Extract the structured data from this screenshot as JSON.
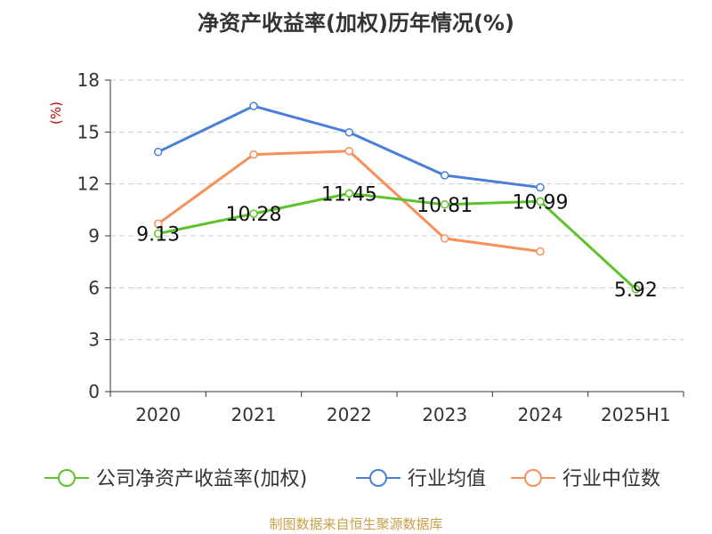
{
  "chart_data": {
    "type": "line",
    "title": "净资产收益率(加权)历年情况(%)",
    "ylabel": "(%)",
    "categories": [
      "2020",
      "2021",
      "2022",
      "2023",
      "2024",
      "2025H1"
    ],
    "yticks": [
      0,
      3,
      6,
      9,
      12,
      15,
      18
    ],
    "ylim": [
      0,
      18
    ],
    "grid": true,
    "legend_position": "bottom",
    "series": [
      {
        "name": "公司净资产收益率(加权)",
        "color": "#5cc32b",
        "values": [
          9.13,
          10.28,
          11.45,
          10.81,
          10.99,
          5.92
        ],
        "labels": [
          "9.13",
          "10.28",
          "11.45",
          "10.81",
          "10.99",
          "5.92"
        ]
      },
      {
        "name": "行业均值",
        "color": "#4a7fd8",
        "values": [
          13.85,
          16.5,
          14.98,
          12.5,
          11.8,
          null
        ]
      },
      {
        "name": "行业中位数",
        "color": "#f79059",
        "values": [
          9.7,
          13.7,
          13.9,
          8.85,
          8.1,
          null
        ]
      }
    ]
  },
  "source": "制图数据来自恒生聚源数据库"
}
